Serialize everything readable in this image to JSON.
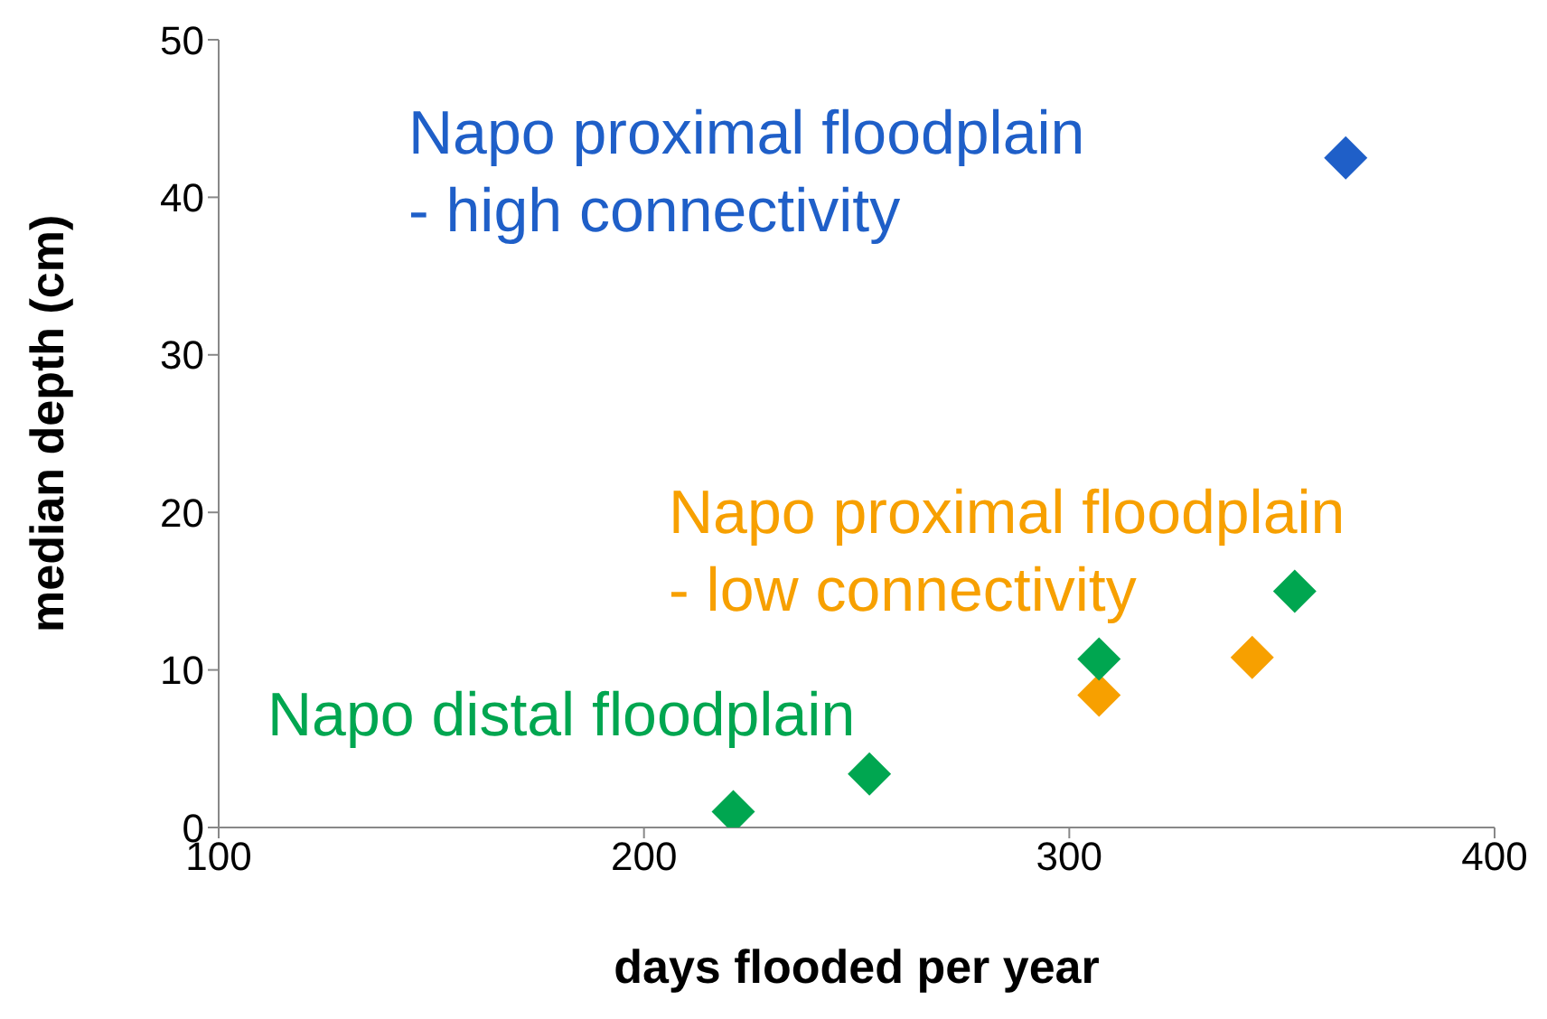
{
  "chart_data": {
    "type": "scatter",
    "xlabel": "days flooded per year",
    "ylabel": "median depth (cm)",
    "xlim": [
      100,
      400
    ],
    "xticks": [
      100,
      200,
      300,
      400
    ],
    "ylim": [
      0,
      50
    ],
    "yticks": [
      0,
      10,
      20,
      30,
      40,
      50
    ],
    "grid": false,
    "legend": false,
    "marker": "diamond",
    "series": [
      {
        "name": "Napo proximal floodplain\n- high connectivity",
        "color": "#1f5fc8",
        "x": [
          365
        ],
        "values": [
          42.5
        ]
      },
      {
        "name": "Napo proximal floodplain\n- low connectivity",
        "color": "#f7a000",
        "x": [
          307,
          343
        ],
        "values": [
          8.4,
          10.8
        ]
      },
      {
        "name": "Napo distal floodplain",
        "color": "#00a650",
        "x": [
          221,
          253,
          307,
          353
        ],
        "values": [
          1,
          3.4,
          10.7,
          15
        ]
      }
    ]
  }
}
